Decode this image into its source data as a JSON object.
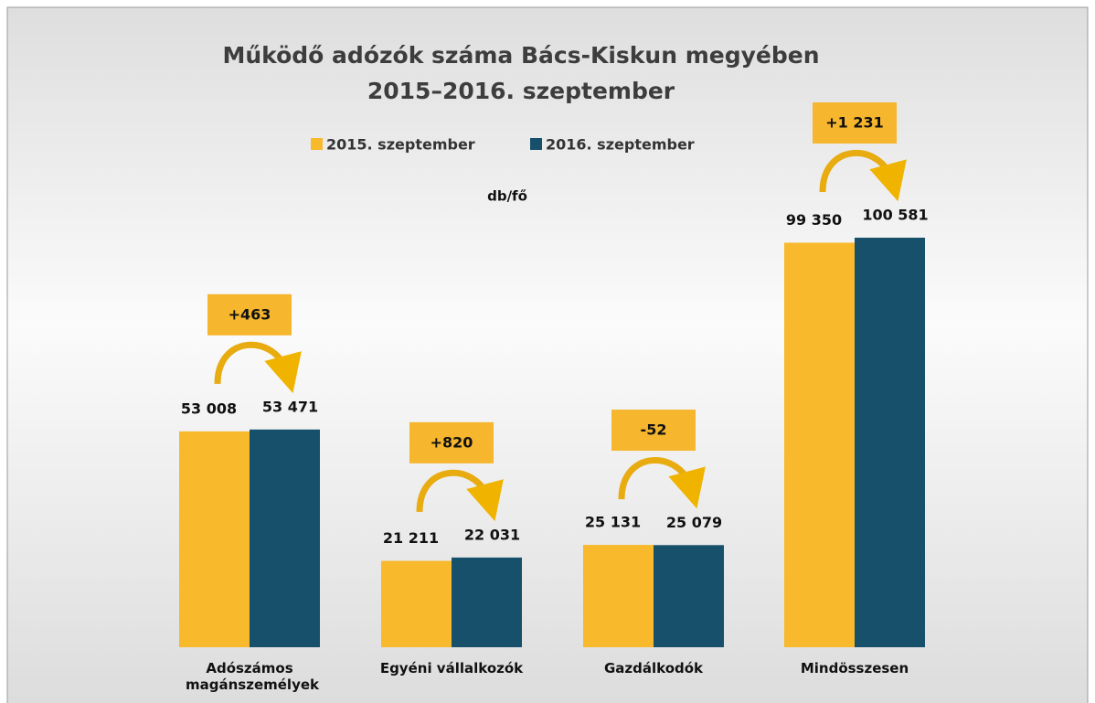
{
  "chart_data": {
    "type": "bar",
    "title": "Működő adózók száma Bács-Kiskun megyében",
    "subtitle": "2015–2016. szeptember",
    "unit_label": "db/fő",
    "categories": [
      "Adószámos magánszemélyek",
      "Egyéni vállalkozók",
      "Gazdálkodók",
      "Mindösszesen"
    ],
    "series": [
      {
        "name": "2015. szeptember",
        "color": "#f8b92c",
        "values": [
          53008,
          21211,
          25131,
          99350
        ],
        "value_labels": [
          "53 008",
          "21 211",
          "25 131",
          "99 350"
        ]
      },
      {
        "name": "2016. szeptember",
        "color": "#17506a",
        "values": [
          53471,
          22031,
          25079,
          100581
        ],
        "value_labels": [
          "53 471",
          "22 031",
          "25 079",
          "100 581"
        ]
      }
    ],
    "annotations": [
      "+463",
      "+820",
      "-52",
      "+1 231"
    ]
  }
}
